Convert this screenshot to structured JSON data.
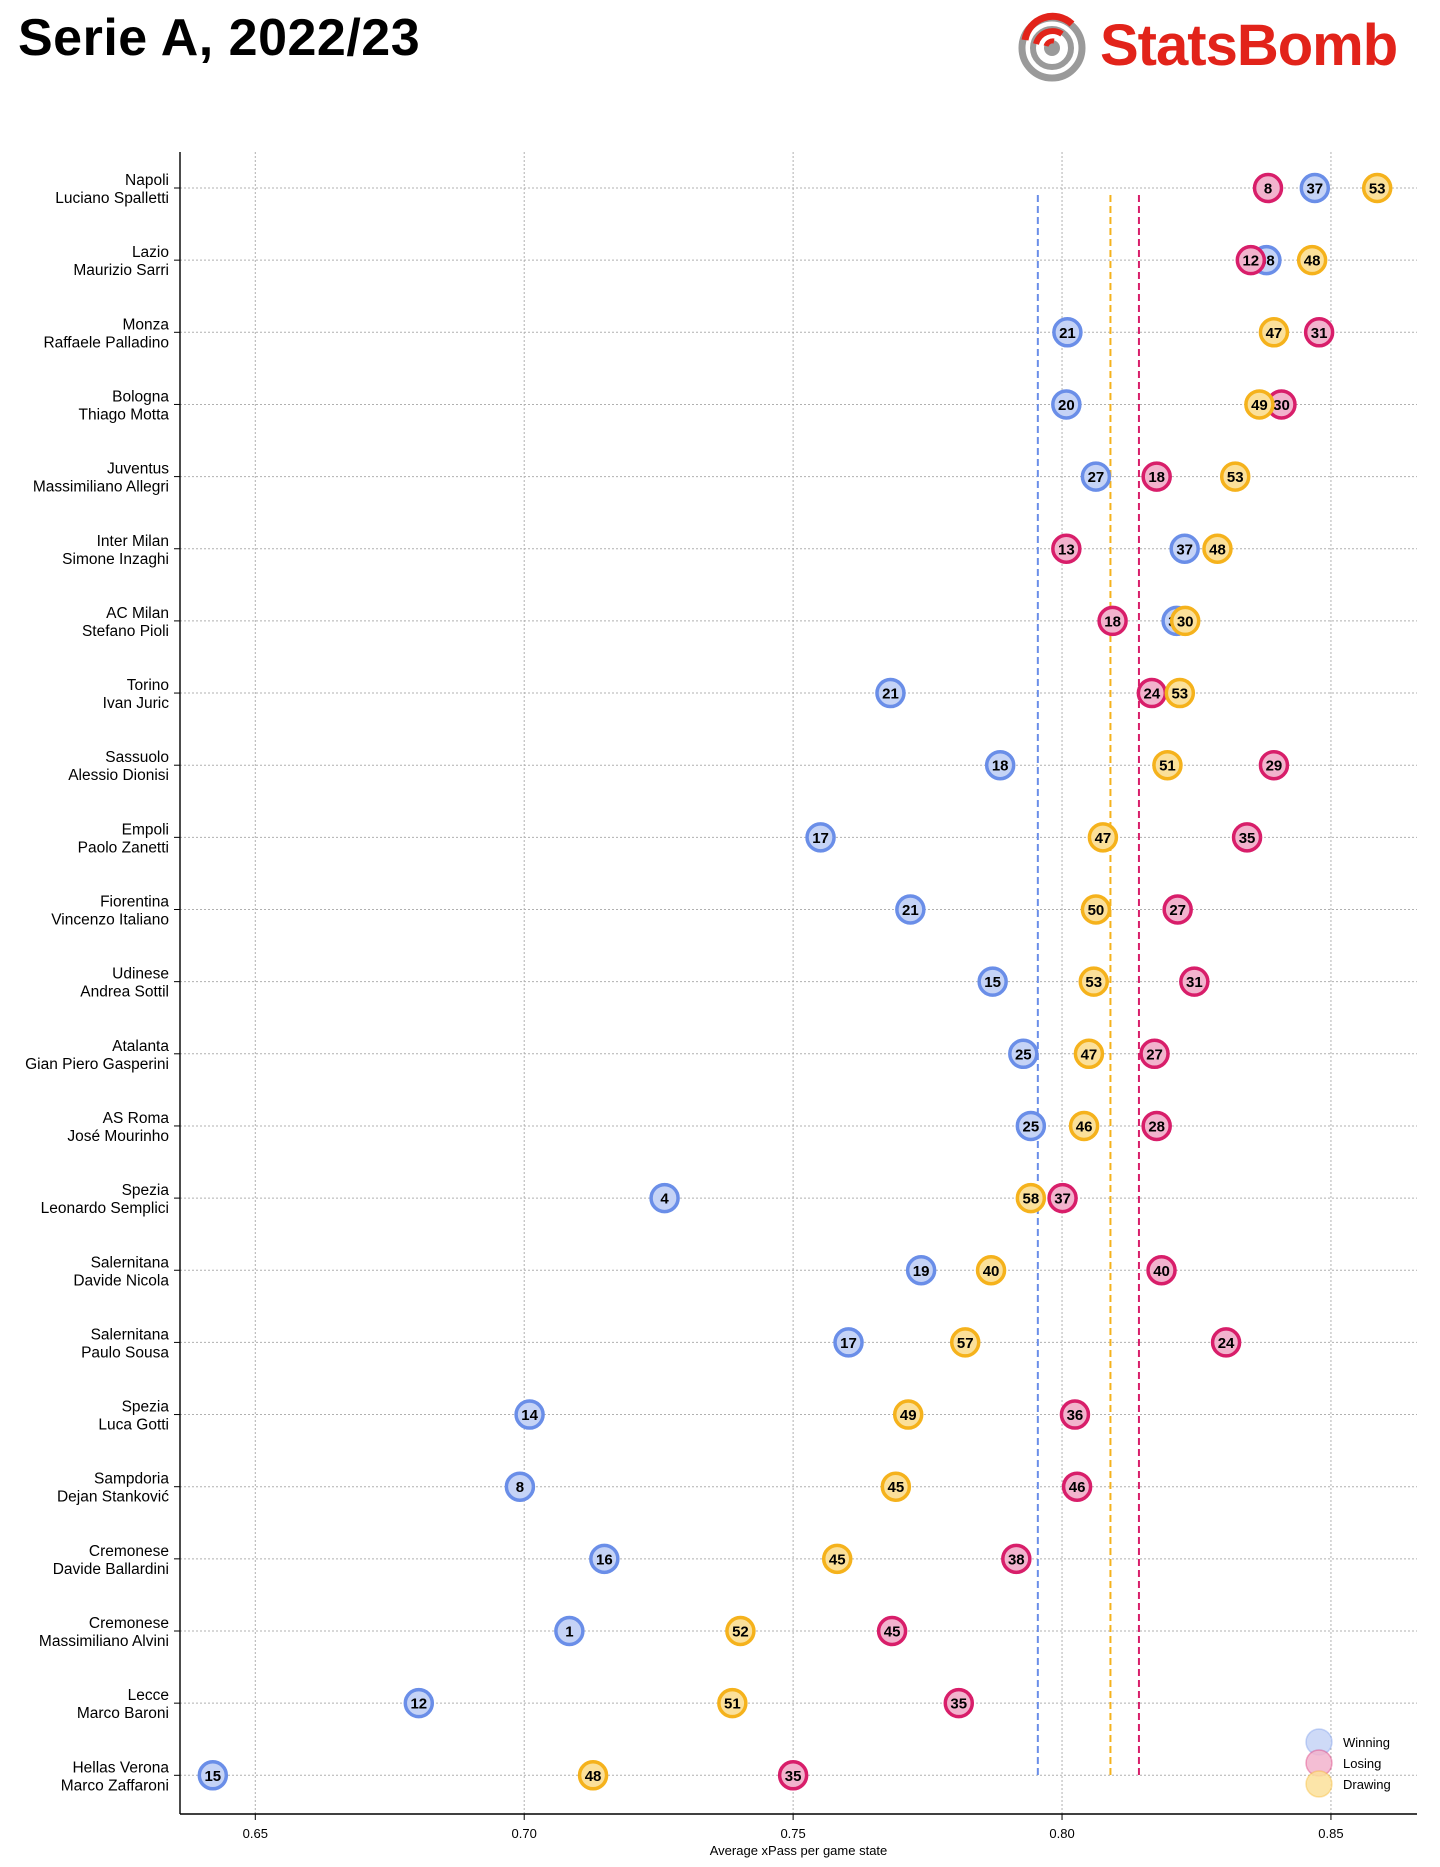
{
  "page": {
    "title": "Serie A, 2022/23",
    "brand": "StatsBomb",
    "brand_color": "#e2231a",
    "brand_icon": "target-bomb-icon"
  },
  "chart_data": {
    "type": "scatter",
    "xlabel": "Average xPass per game state",
    "xlim": [
      0.636,
      0.866
    ],
    "x_ticks": [
      "0.65",
      "0.70",
      "0.75",
      "0.80",
      "0.85"
    ],
    "x_tick_values": [
      0.65,
      0.7,
      0.75,
      0.8,
      0.85
    ],
    "grid": true,
    "legend": "bottom-right",
    "rows": [
      {
        "team": "Napoli",
        "manager": "Luciano Spalletti"
      },
      {
        "team": "Lazio",
        "manager": "Maurizio Sarri"
      },
      {
        "team": "Monza",
        "manager": "Raffaele Palladino"
      },
      {
        "team": "Bologna",
        "manager": "Thiago Motta"
      },
      {
        "team": "Juventus",
        "manager": "Massimiliano Allegri"
      },
      {
        "team": "Inter Milan",
        "manager": "Simone Inzaghi"
      },
      {
        "team": "AC Milan",
        "manager": "Stefano Pioli"
      },
      {
        "team": "Torino",
        "manager": "Ivan Juric"
      },
      {
        "team": "Sassuolo",
        "manager": "Alessio Dionisi"
      },
      {
        "team": "Empoli",
        "manager": "Paolo Zanetti"
      },
      {
        "team": "Fiorentina",
        "manager": "Vincenzo Italiano"
      },
      {
        "team": "Udinese",
        "manager": "Andrea Sottil"
      },
      {
        "team": "Atalanta",
        "manager": "Gian Piero Gasperini"
      },
      {
        "team": "AS Roma",
        "manager": "José Mourinho"
      },
      {
        "team": "Spezia",
        "manager": "Leonardo Semplici"
      },
      {
        "team": "Salernitana",
        "manager": "Davide Nicola"
      },
      {
        "team": "Salernitana",
        "manager": "Paulo Sousa"
      },
      {
        "team": "Spezia",
        "manager": "Luca Gotti"
      },
      {
        "team": "Sampdoria",
        "manager": "Dejan Stanković"
      },
      {
        "team": "Cremonese",
        "manager": "Davide Ballardini"
      },
      {
        "team": "Cremonese",
        "manager": "Massimiliano Alvini"
      },
      {
        "team": "Lecce",
        "manager": "Marco Baroni"
      },
      {
        "team": "Hellas Verona",
        "manager": "Marco Zaffaroni"
      }
    ],
    "series": [
      {
        "name": "Winning",
        "color": "#6a8ee8",
        "fill": "#c5d3f6",
        "average": 0.7955,
        "points": [
          {
            "x": 0.847,
            "label": "37"
          },
          {
            "x": 0.838,
            "label": "38"
          },
          {
            "x": 0.801,
            "label": "21"
          },
          {
            "x": 0.8008,
            "label": "20"
          },
          {
            "x": 0.8063,
            "label": "27"
          },
          {
            "x": 0.8228,
            "label": "37"
          },
          {
            "x": 0.8213,
            "label": "30"
          },
          {
            "x": 0.7681,
            "label": "21"
          },
          {
            "x": 0.7885,
            "label": "18"
          },
          {
            "x": 0.7551,
            "label": "17"
          },
          {
            "x": 0.7718,
            "label": "21"
          },
          {
            "x": 0.7871,
            "label": "15"
          },
          {
            "x": 0.7928,
            "label": "25"
          },
          {
            "x": 0.7942,
            "label": "25"
          },
          {
            "x": 0.7261,
            "label": "4"
          },
          {
            "x": 0.7738,
            "label": "19"
          },
          {
            "x": 0.7603,
            "label": "17"
          },
          {
            "x": 0.701,
            "label": "14"
          },
          {
            "x": 0.6992,
            "label": "8"
          },
          {
            "x": 0.7149,
            "label": "16"
          },
          {
            "x": 0.7084,
            "label": "1"
          },
          {
            "x": 0.6804,
            "label": "12"
          },
          {
            "x": 0.6421,
            "label": "15"
          }
        ]
      },
      {
        "name": "Losing",
        "color": "#d81e6a",
        "fill": "#f2b3cd",
        "average": 0.8143,
        "points": [
          {
            "x": 0.8383,
            "label": "8"
          },
          {
            "x": 0.8351,
            "label": "12"
          },
          {
            "x": 0.8478,
            "label": "31"
          },
          {
            "x": 0.8408,
            "label": "30"
          },
          {
            "x": 0.8176,
            "label": "18"
          },
          {
            "x": 0.8008,
            "label": "13"
          },
          {
            "x": 0.8094,
            "label": "18"
          },
          {
            "x": 0.8167,
            "label": "24"
          },
          {
            "x": 0.8394,
            "label": "29"
          },
          {
            "x": 0.8344,
            "label": "35"
          },
          {
            "x": 0.8215,
            "label": "27"
          },
          {
            "x": 0.8246,
            "label": "31"
          },
          {
            "x": 0.8172,
            "label": "27"
          },
          {
            "x": 0.8176,
            "label": "28"
          },
          {
            "x": 0.8001,
            "label": "37"
          },
          {
            "x": 0.8185,
            "label": "40"
          },
          {
            "x": 0.8305,
            "label": "24"
          },
          {
            "x": 0.8024,
            "label": "36"
          },
          {
            "x": 0.8028,
            "label": "46"
          },
          {
            "x": 0.7915,
            "label": "38"
          },
          {
            "x": 0.7684,
            "label": "45"
          },
          {
            "x": 0.7808,
            "label": "35"
          },
          {
            "x": 0.75,
            "label": "35"
          }
        ]
      },
      {
        "name": "Drawing",
        "color": "#f5b21c",
        "fill": "#fbe09a",
        "average": 0.809,
        "points": [
          {
            "x": 0.8586,
            "label": "53"
          },
          {
            "x": 0.8465,
            "label": "48"
          },
          {
            "x": 0.8394,
            "label": "47"
          },
          {
            "x": 0.8367,
            "label": "49"
          },
          {
            "x": 0.8322,
            "label": "53"
          },
          {
            "x": 0.8289,
            "label": "48"
          },
          {
            "x": 0.8229,
            "label": "30"
          },
          {
            "x": 0.8219,
            "label": "53"
          },
          {
            "x": 0.8196,
            "label": "51"
          },
          {
            "x": 0.8076,
            "label": "47"
          },
          {
            "x": 0.8063,
            "label": "50"
          },
          {
            "x": 0.8059,
            "label": "53"
          },
          {
            "x": 0.805,
            "label": "47"
          },
          {
            "x": 0.8041,
            "label": "46"
          },
          {
            "x": 0.7942,
            "label": "58"
          },
          {
            "x": 0.7868,
            "label": "40"
          },
          {
            "x": 0.782,
            "label": "57"
          },
          {
            "x": 0.7714,
            "label": "49"
          },
          {
            "x": 0.7691,
            "label": "45"
          },
          {
            "x": 0.7582,
            "label": "45"
          },
          {
            "x": 0.7402,
            "label": "52"
          },
          {
            "x": 0.7387,
            "label": "51"
          },
          {
            "x": 0.7128,
            "label": "48"
          }
        ]
      }
    ],
    "draw_order": [
      "Winning",
      "Losing",
      "Drawing"
    ]
  }
}
